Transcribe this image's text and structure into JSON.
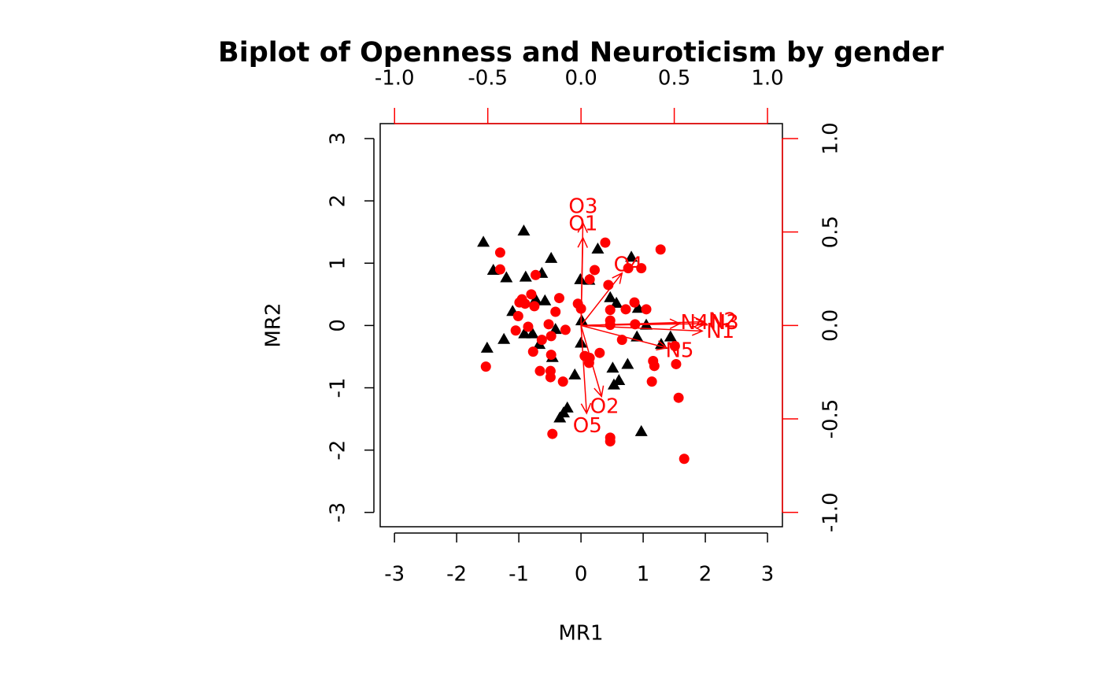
{
  "chart_data": {
    "type": "biplot",
    "title": "Biplot of Openness and Neuroticism by gender",
    "xlabel": "MR1",
    "ylabel": "MR2",
    "xlim": [
      -3.23,
      3.24
    ],
    "ylim": [
      -3.23,
      3.24
    ],
    "xticks": [
      -3,
      -2,
      -1,
      0,
      1,
      2,
      3
    ],
    "yticks": [
      -3,
      -2,
      -1,
      0,
      1,
      2,
      3
    ],
    "x2lim": [
      -1.077,
      1.08
    ],
    "y2lim": [
      -1.077,
      1.08
    ],
    "x2ticks": [
      {
        "value": -1,
        "label": "-1.0"
      },
      -0.5,
      {
        "value": 0,
        "label": "0.0"
      },
      0.5,
      {
        "value": 1,
        "label": "1.0"
      }
    ],
    "y2ticks": [
      {
        "value": -1,
        "label": "-1.0"
      },
      -0.5,
      {
        "value": 0,
        "label": "0.0"
      },
      0.5,
      {
        "value": 1,
        "label": "1.0"
      }
    ],
    "secondary_axis_color": "#ff0000",
    "series": [
      {
        "color": "#000000",
        "marker": "triangle",
        "x": [
          -1.57,
          -0.92,
          -0.48,
          -1.41,
          -1.2,
          -0.89,
          -0.63,
          -0.01,
          0.13,
          0.27,
          0.81,
          0.47,
          0.57,
          0.92,
          -0.73,
          -0.58,
          -1.1,
          0.01,
          -0.41,
          -0.91,
          -0.78,
          -1.24,
          -0.67,
          -1.51,
          0,
          -0.46,
          1.05,
          0.9,
          1.29,
          1.44,
          0.75,
          0.51,
          0.61,
          0.53,
          -0.1,
          -0.22,
          -0.28,
          -0.34,
          0.97
        ],
        "values": [
          1.34,
          1.52,
          1.08,
          0.89,
          0.77,
          0.78,
          0.84,
          0.74,
          0.73,
          1.23,
          1.1,
          0.45,
          0.36,
          0.28,
          0.42,
          0.4,
          0.23,
          0.08,
          -0.06,
          -0.13,
          -0.13,
          -0.22,
          -0.3,
          -0.36,
          -0.28,
          -0.51,
          0.01,
          -0.18,
          -0.3,
          -0.18,
          -0.62,
          -0.68,
          -0.88,
          -0.95,
          -0.79,
          -1.32,
          -1.4,
          -1.48,
          -1.7
        ]
      },
      {
        "color": "#ff0000",
        "marker": "circle",
        "x": [
          -1.3,
          0.39,
          1.28,
          -1.3,
          0.22,
          0.76,
          0.97,
          -0.73,
          0.14,
          0.44,
          -0.8,
          -0.95,
          -0.35,
          -0.99,
          -0.9,
          -0.75,
          -0.05,
          0,
          0.86,
          0.47,
          0.72,
          1.05,
          -0.41,
          -1.01,
          0.47,
          0.47,
          0.87,
          -0.52,
          -0.85,
          -1.05,
          -0.25,
          -0.48,
          0.66,
          -0.63,
          1.51,
          -0.77,
          0.3,
          -0.48,
          0.06,
          0.14,
          1.16,
          0.13,
          1.18,
          1.53,
          -0.66,
          -0.49,
          -1.53,
          -0.49,
          -0.29,
          1.14,
          1.57,
          -0.46,
          0.47,
          0.47,
          1.66
        ],
        "values": [
          1.17,
          1.33,
          1.22,
          0.9,
          0.89,
          0.92,
          0.92,
          0.81,
          0.74,
          0.65,
          0.5,
          0.42,
          0.44,
          0.37,
          0.35,
          0.31,
          0.35,
          0.27,
          0.37,
          0.25,
          0.26,
          0.26,
          0.22,
          0.15,
          0.08,
          0.01,
          0.02,
          0.02,
          -0.02,
          -0.08,
          -0.07,
          -0.17,
          -0.23,
          -0.23,
          -0.33,
          -0.42,
          -0.44,
          -0.47,
          -0.49,
          -0.52,
          -0.57,
          -0.6,
          -0.65,
          -0.62,
          -0.73,
          -0.73,
          -0.66,
          -0.83,
          -0.9,
          -0.9,
          -1.16,
          -1.74,
          -1.8,
          -1.86,
          -2.14
        ]
      }
    ],
    "loadings": {
      "color": "#ff0000",
      "labels": [
        "O1",
        "O2",
        "O3",
        "O4",
        "O5",
        "N1",
        "N2",
        "N3",
        "N4",
        "N5"
      ],
      "x": [
        0.01,
        0.11,
        0.01,
        0.22,
        0.03,
        0.65,
        0.66,
        0.67,
        0.53,
        0.46
      ],
      "y": [
        0.47,
        -0.38,
        0.55,
        0.28,
        -0.47,
        -0.03,
        0.02,
        0.01,
        0.01,
        -0.12
      ]
    }
  }
}
